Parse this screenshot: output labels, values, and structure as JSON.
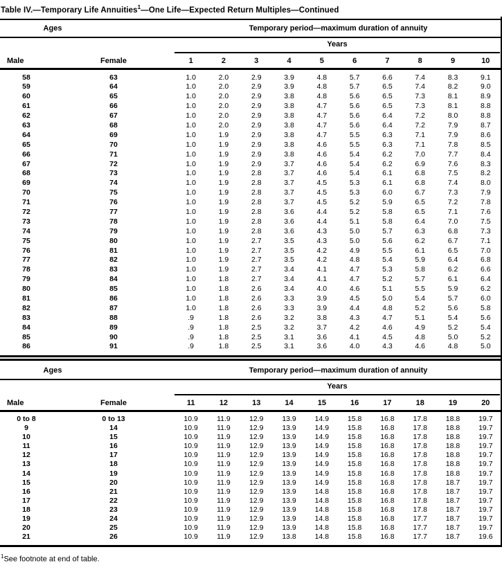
{
  "title": {
    "prefix": "Table IV.—Temporary Life Annuities",
    "sup": "1",
    "suffix": "—One Life—Expected Return Multiples—Continued"
  },
  "footnote": {
    "sup": "1",
    "text": "See footnote at end of table."
  },
  "tables": [
    {
      "ages_header": "Ages",
      "period_header": "Temporary period—maximum duration of annuity",
      "years_header": "Years",
      "male_header": "Male",
      "female_header": "Female",
      "year_columns": [
        "1",
        "2",
        "3",
        "4",
        "5",
        "6",
        "7",
        "8",
        "9",
        "10"
      ],
      "rows": [
        {
          "male": "58",
          "female": "63",
          "values": [
            "1.0",
            "2.0",
            "2.9",
            "3.9",
            "4.8",
            "5.7",
            "6.6",
            "7.4",
            "8.3",
            "9.1"
          ]
        },
        {
          "male": "59",
          "female": "64",
          "values": [
            "1.0",
            "2.0",
            "2.9",
            "3.9",
            "4.8",
            "5.7",
            "6.5",
            "7.4",
            "8.2",
            "9.0"
          ]
        },
        {
          "male": "60",
          "female": "65",
          "values": [
            "1.0",
            "2.0",
            "2.9",
            "3.8",
            "4.8",
            "5.6",
            "6.5",
            "7.3",
            "8.1",
            "8.9"
          ]
        },
        {
          "male": "61",
          "female": "66",
          "values": [
            "1.0",
            "2.0",
            "2.9",
            "3.8",
            "4.7",
            "5.6",
            "6.5",
            "7.3",
            "8.1",
            "8.8"
          ]
        },
        {
          "male": "62",
          "female": "67",
          "values": [
            "1.0",
            "2.0",
            "2.9",
            "3.8",
            "4.7",
            "5.6",
            "6.4",
            "7.2",
            "8.0",
            "8.8"
          ]
        },
        {
          "male": "63",
          "female": "68",
          "values": [
            "1.0",
            "2.0",
            "2.9",
            "3.8",
            "4.7",
            "5.6",
            "6.4",
            "7.2",
            "7.9",
            "8.7"
          ]
        },
        {
          "male": "64",
          "female": "69",
          "values": [
            "1.0",
            "1.9",
            "2.9",
            "3.8",
            "4.7",
            "5.5",
            "6.3",
            "7.1",
            "7.9",
            "8.6"
          ]
        },
        {
          "male": "65",
          "female": "70",
          "values": [
            "1.0",
            "1.9",
            "2.9",
            "3.8",
            "4.6",
            "5.5",
            "6.3",
            "7.1",
            "7.8",
            "8.5"
          ]
        },
        {
          "male": "66",
          "female": "71",
          "values": [
            "1.0",
            "1.9",
            "2.9",
            "3.8",
            "4.6",
            "5.4",
            "6.2",
            "7.0",
            "7.7",
            "8.4"
          ]
        },
        {
          "male": "67",
          "female": "72",
          "values": [
            "1.0",
            "1.9",
            "2.9",
            "3.7",
            "4.6",
            "5.4",
            "6.2",
            "6.9",
            "7.6",
            "8.3"
          ]
        },
        {
          "male": "68",
          "female": "73",
          "values": [
            "1.0",
            "1.9",
            "2.8",
            "3.7",
            "4.6",
            "5.4",
            "6.1",
            "6.8",
            "7.5",
            "8.2"
          ]
        },
        {
          "male": "69",
          "female": "74",
          "values": [
            "1.0",
            "1.9",
            "2.8",
            "3.7",
            "4.5",
            "5.3",
            "6.1",
            "6.8",
            "7.4",
            "8.0"
          ]
        },
        {
          "male": "70",
          "female": "75",
          "values": [
            "1.0",
            "1.9",
            "2.8",
            "3.7",
            "4.5",
            "5.3",
            "6.0",
            "6.7",
            "7.3",
            "7.9"
          ]
        },
        {
          "male": "71",
          "female": "76",
          "values": [
            "1.0",
            "1.9",
            "2.8",
            "3.7",
            "4.5",
            "5.2",
            "5.9",
            "6.5",
            "7.2",
            "7.8"
          ]
        },
        {
          "male": "72",
          "female": "77",
          "values": [
            "1.0",
            "1.9",
            "2.8",
            "3.6",
            "4.4",
            "5.2",
            "5.8",
            "6.5",
            "7.1",
            "7.6"
          ]
        },
        {
          "male": "73",
          "female": "78",
          "values": [
            "1.0",
            "1.9",
            "2.8",
            "3.6",
            "4.4",
            "5.1",
            "5.8",
            "6.4",
            "7.0",
            "7.5"
          ]
        },
        {
          "male": "74",
          "female": "79",
          "values": [
            "1.0",
            "1.9",
            "2.8",
            "3.6",
            "4.3",
            "5.0",
            "5.7",
            "6.3",
            "6.8",
            "7.3"
          ]
        },
        {
          "male": "75",
          "female": "80",
          "values": [
            "1.0",
            "1.9",
            "2.7",
            "3.5",
            "4.3",
            "5.0",
            "5.6",
            "6.2",
            "6.7",
            "7.1"
          ]
        },
        {
          "male": "76",
          "female": "81",
          "values": [
            "1.0",
            "1.9",
            "2.7",
            "3.5",
            "4.2",
            "4.9",
            "5.5",
            "6.1",
            "6.5",
            "7.0"
          ]
        },
        {
          "male": "77",
          "female": "82",
          "values": [
            "1.0",
            "1.9",
            "2.7",
            "3.5",
            "4.2",
            "4.8",
            "5.4",
            "5.9",
            "6.4",
            "6.8"
          ]
        },
        {
          "male": "78",
          "female": "83",
          "values": [
            "1.0",
            "1.9",
            "2.7",
            "3.4",
            "4.1",
            "4.7",
            "5.3",
            "5.8",
            "6.2",
            "6.6"
          ]
        },
        {
          "male": "79",
          "female": "84",
          "values": [
            "1.0",
            "1.8",
            "2.7",
            "3.4",
            "4.1",
            "4.7",
            "5.2",
            "5.7",
            "6.1",
            "6.4"
          ]
        },
        {
          "male": "80",
          "female": "85",
          "values": [
            "1.0",
            "1.8",
            "2.6",
            "3.4",
            "4.0",
            "4.6",
            "5.1",
            "5.5",
            "5.9",
            "6.2"
          ]
        },
        {
          "male": "81",
          "female": "86",
          "values": [
            "1.0",
            "1.8",
            "2.6",
            "3.3",
            "3.9",
            "4.5",
            "5.0",
            "5.4",
            "5.7",
            "6.0"
          ]
        },
        {
          "male": "82",
          "female": "87",
          "values": [
            "1.0",
            "1.8",
            "2.6",
            "3.3",
            "3.9",
            "4.4",
            "4.8",
            "5.2",
            "5.6",
            "5.8"
          ]
        },
        {
          "male": "83",
          "female": "88",
          "values": [
            ".9",
            "1.8",
            "2.6",
            "3.2",
            "3.8",
            "4.3",
            "4.7",
            "5.1",
            "5.4",
            "5.6"
          ]
        },
        {
          "male": "84",
          "female": "89",
          "values": [
            ".9",
            "1.8",
            "2.5",
            "3.2",
            "3.7",
            "4.2",
            "4.6",
            "4.9",
            "5.2",
            "5.4"
          ]
        },
        {
          "male": "85",
          "female": "90",
          "values": [
            ".9",
            "1.8",
            "2.5",
            "3.1",
            "3.6",
            "4.1",
            "4.5",
            "4.8",
            "5.0",
            "5.2"
          ]
        },
        {
          "male": "86",
          "female": "91",
          "values": [
            ".9",
            "1.8",
            "2.5",
            "3.1",
            "3.6",
            "4.0",
            "4.3",
            "4.6",
            "4.8",
            "5.0"
          ]
        }
      ]
    },
    {
      "ages_header": "Ages",
      "period_header": "Temporary period—maximum duration of annuity",
      "years_header": "Years",
      "male_header": "Male",
      "female_header": "Female",
      "year_columns": [
        "11",
        "12",
        "13",
        "14",
        "15",
        "16",
        "17",
        "18",
        "19",
        "20"
      ],
      "rows": [
        {
          "male": "0 to 8",
          "female": "0 to 13",
          "values": [
            "10.9",
            "11.9",
            "12.9",
            "13.9",
            "14.9",
            "15.8",
            "16.8",
            "17.8",
            "18.8",
            "19.7"
          ]
        },
        {
          "male": "9",
          "female": "14",
          "values": [
            "10.9",
            "11.9",
            "12.9",
            "13.9",
            "14.9",
            "15.8",
            "16.8",
            "17.8",
            "18.8",
            "19.7"
          ]
        },
        {
          "male": "10",
          "female": "15",
          "values": [
            "10.9",
            "11.9",
            "12.9",
            "13.9",
            "14.9",
            "15.8",
            "16.8",
            "17.8",
            "18.8",
            "19.7"
          ]
        },
        {
          "male": "11",
          "female": "16",
          "values": [
            "10.9",
            "11.9",
            "12.9",
            "13.9",
            "14.9",
            "15.8",
            "16.8",
            "17.8",
            "18.8",
            "19.7"
          ]
        },
        {
          "male": "12",
          "female": "17",
          "values": [
            "10.9",
            "11.9",
            "12.9",
            "13.9",
            "14.9",
            "15.8",
            "16.8",
            "17.8",
            "18.8",
            "19.7"
          ]
        },
        {
          "male": "13",
          "female": "18",
          "values": [
            "10.9",
            "11.9",
            "12.9",
            "13.9",
            "14.9",
            "15.8",
            "16.8",
            "17.8",
            "18.8",
            "19.7"
          ]
        },
        {
          "male": "14",
          "female": "19",
          "values": [
            "10.9",
            "11.9",
            "12.9",
            "13.9",
            "14.9",
            "15.8",
            "16.8",
            "17.8",
            "18.8",
            "19.7"
          ]
        },
        {
          "male": "15",
          "female": "20",
          "values": [
            "10.9",
            "11.9",
            "12.9",
            "13.9",
            "14.9",
            "15.8",
            "16.8",
            "17.8",
            "18.7",
            "19.7"
          ]
        },
        {
          "male": "16",
          "female": "21",
          "values": [
            "10.9",
            "11.9",
            "12.9",
            "13.9",
            "14.8",
            "15.8",
            "16.8",
            "17.8",
            "18.7",
            "19.7"
          ]
        },
        {
          "male": "17",
          "female": "22",
          "values": [
            "10.9",
            "11.9",
            "12.9",
            "13.9",
            "14.8",
            "15.8",
            "16.8",
            "17.8",
            "18.7",
            "19.7"
          ]
        },
        {
          "male": "18",
          "female": "23",
          "values": [
            "10.9",
            "11.9",
            "12.9",
            "13.9",
            "14.8",
            "15.8",
            "16.8",
            "17.8",
            "18.7",
            "19.7"
          ]
        },
        {
          "male": "19",
          "female": "24",
          "values": [
            "10.9",
            "11.9",
            "12.9",
            "13.9",
            "14.8",
            "15.8",
            "16.8",
            "17.7",
            "18.7",
            "19.7"
          ]
        },
        {
          "male": "20",
          "female": "25",
          "values": [
            "10.9",
            "11.9",
            "12.9",
            "13.9",
            "14.8",
            "15.8",
            "16.8",
            "17.7",
            "18.7",
            "19.7"
          ]
        },
        {
          "male": "21",
          "female": "26",
          "values": [
            "10.9",
            "11.9",
            "12.9",
            "13.8",
            "14.8",
            "15.8",
            "16.8",
            "17.7",
            "18.7",
            "19.6"
          ]
        }
      ]
    }
  ]
}
